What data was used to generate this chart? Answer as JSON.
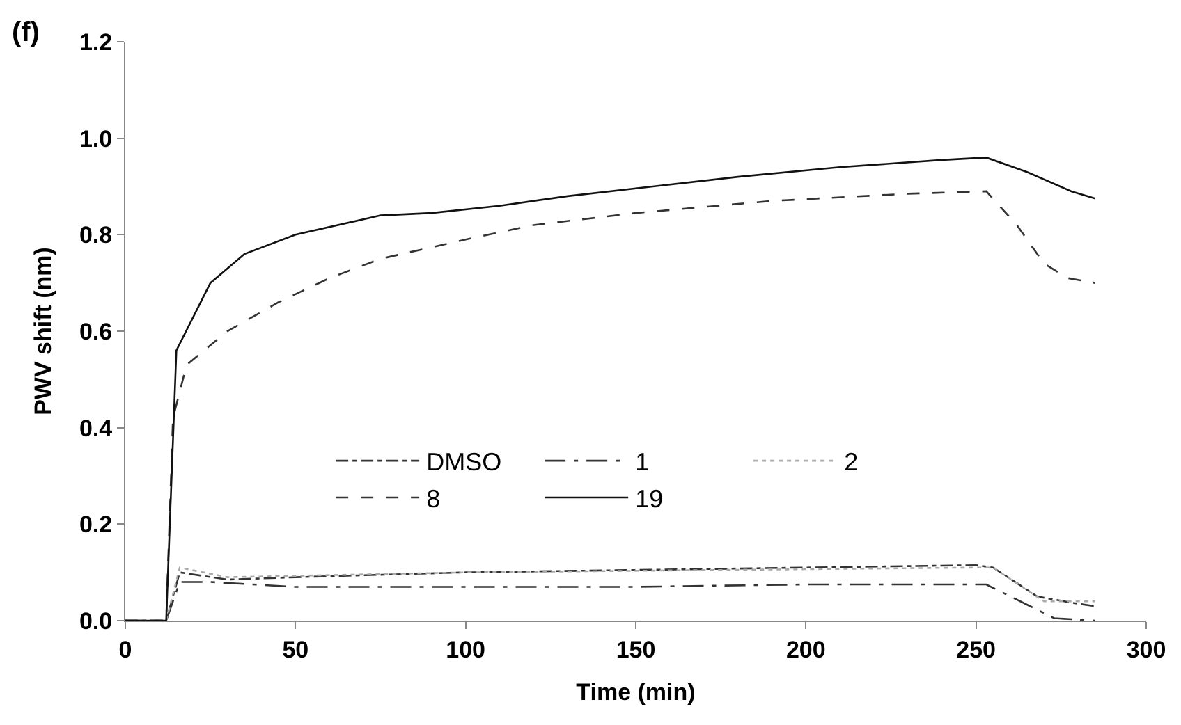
{
  "chart_data": {
    "type": "line",
    "title": "(f)",
    "xlabel": "Time (min)",
    "ylabel": "PWV shift (nm)",
    "xlim": [
      0,
      300
    ],
    "xticks": [
      0,
      50,
      100,
      150,
      200,
      250,
      300
    ],
    "ylim": [
      0,
      1.2
    ],
    "yticks": [
      {
        "value": 0,
        "label": "0.0"
      },
      0.2,
      0.4,
      0.6,
      0.8,
      {
        "value": 1,
        "label": "1.0"
      },
      1.2
    ],
    "legend": "bottom",
    "marker": "none",
    "series": [
      {
        "name": "DMSO",
        "color": "#333333",
        "line_style": "dashdot",
        "x": [
          0,
          12,
          16,
          30,
          50,
          100,
          150,
          200,
          250,
          255,
          268,
          280,
          285
        ],
        "values": [
          0,
          0,
          0.1,
          0.085,
          0.09,
          0.1,
          0.105,
          0.11,
          0.115,
          0.11,
          0.05,
          0.035,
          0.03
        ]
      },
      {
        "name": "1",
        "color": "#333333",
        "line_style": "longdashdot",
        "x": [
          0,
          12,
          16,
          25,
          50,
          150,
          200,
          253,
          273,
          285
        ],
        "values": [
          0,
          0,
          0.08,
          0.08,
          0.07,
          0.07,
          0.075,
          0.075,
          0.005,
          0.0
        ]
      },
      {
        "name": "2",
        "color": "#aaaaaa",
        "line_style": "dotted",
        "x": [
          0,
          12,
          16,
          30,
          100,
          250,
          255,
          270,
          285
        ],
        "values": [
          0,
          0,
          0.11,
          0.09,
          0.1,
          0.11,
          0.11,
          0.04,
          0.04
        ]
      },
      {
        "name": "8",
        "color": "#333333",
        "line_style": "dashed",
        "x": [
          0,
          12,
          14,
          18,
          30,
          45,
          60,
          75,
          100,
          120,
          150,
          190,
          230,
          253,
          262,
          270,
          277,
          285
        ],
        "values": [
          0,
          0,
          0.42,
          0.53,
          0.6,
          0.66,
          0.71,
          0.75,
          0.79,
          0.82,
          0.845,
          0.87,
          0.885,
          0.89,
          0.82,
          0.74,
          0.71,
          0.7
        ]
      },
      {
        "name": "19",
        "color": "#111111",
        "line_style": "solid",
        "x": [
          0,
          12,
          15,
          25,
          35,
          50,
          75,
          90,
          110,
          130,
          155,
          180,
          210,
          240,
          253,
          265,
          278,
          285
        ],
        "values": [
          0,
          0,
          0.56,
          0.7,
          0.76,
          0.8,
          0.84,
          0.845,
          0.86,
          0.88,
          0.9,
          0.92,
          0.94,
          0.955,
          0.96,
          0.93,
          0.89,
          0.875
        ]
      }
    ]
  }
}
